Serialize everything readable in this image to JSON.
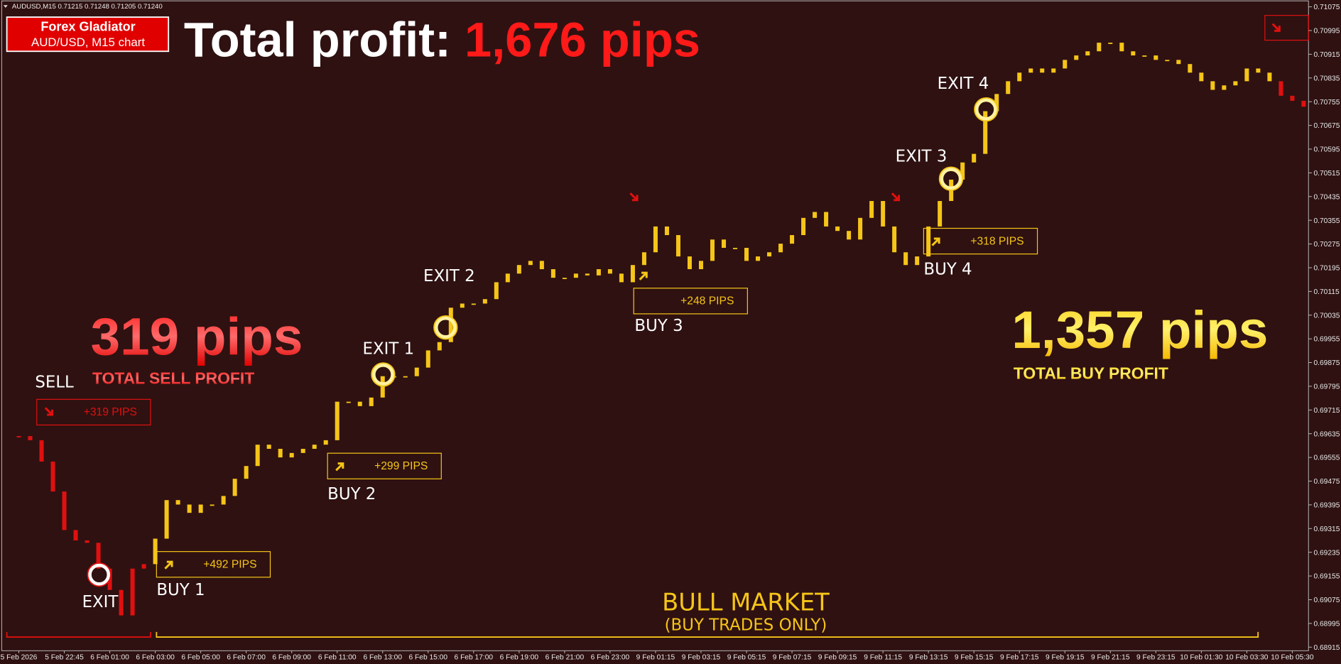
{
  "chart_data": {
    "type": "candlestick",
    "symbol_info": "AUDUSD,M15  0.71215 0.71248 0.71205 0.71240",
    "badge_title": "Forex Gladiator",
    "badge_subtitle": "AUD/USD, M15 chart",
    "title": "Total profit:",
    "title_value": "1,676 pips",
    "sell_total": "319 pips",
    "sell_total_label": "TOTAL SELL PROFIT",
    "buy_total": "1,357 pips",
    "buy_total_label": "TOTAL BUY PROFIT",
    "market_label": "BULL MARKET",
    "market_sublabel": "(BUY TRADES ONLY)",
    "trades": [
      {
        "entry": "SELL",
        "box": "+319 PIPS",
        "exit": "EXIT"
      },
      {
        "entry": "BUY 1",
        "box": "+492 PIPS",
        "exit": "EXIT 1"
      },
      {
        "entry": "BUY 2",
        "box": "+299 PIPS",
        "exit": "EXIT 2"
      },
      {
        "entry": "BUY 3",
        "box": "+248 PIPS",
        "exit": "EXIT 3"
      },
      {
        "entry": "BUY 4",
        "box": "+318 PIPS",
        "exit": "EXIT 4"
      }
    ],
    "categories": [
      "5 Feb 2026",
      null,
      null,
      null,
      "5 Feb 22:45",
      null,
      null,
      null,
      "6 Feb 01:00",
      null,
      null,
      null,
      "6 Feb 03:00",
      null,
      null,
      null,
      "6 Feb 05:00",
      null,
      null,
      null,
      "6 Feb 07:00",
      null,
      null,
      null,
      "6 Feb 09:00",
      null,
      null,
      null,
      "6 Feb 11:00",
      null,
      null,
      null,
      "6 Feb 13:00",
      null,
      null,
      null,
      "6 Feb 15:00",
      null,
      null,
      null,
      "6 Feb 17:00",
      null,
      null,
      null,
      "6 Feb 19:00",
      null,
      null,
      null,
      "6 Feb 21:00",
      null,
      null,
      null,
      "6 Feb 23:00",
      null,
      null,
      null,
      "9 Feb 01:15",
      null,
      null,
      null,
      "9 Feb 03:15",
      null,
      null,
      null,
      "9 Feb 05:15",
      null,
      null,
      null,
      "9 Feb 07:15",
      null,
      null,
      null,
      "9 Feb 09:15",
      null,
      null,
      null,
      "9 Feb 11:15",
      null,
      null,
      null,
      "9 Feb 13:15",
      null,
      null,
      null,
      "9 Feb 15:15",
      null,
      null,
      null,
      "9 Feb 17:15",
      null,
      null,
      null,
      "9 Feb 19:15",
      null,
      null,
      null,
      "9 Feb 21:15",
      null,
      null,
      null,
      "9 Feb 23:15",
      null,
      null,
      null,
      "10 Feb 01:30",
      null,
      null,
      null,
      "10 Feb 03:30",
      null,
      null,
      null,
      "10 Feb 05:30",
      null
    ],
    "closes": [
      0.69627,
      0.69613,
      0.69541,
      0.6944,
      0.6931,
      0.69275,
      0.69267,
      0.6918,
      0.69108,
      0.69022,
      0.6918,
      0.69195,
      0.69281,
      0.69411,
      0.69396,
      0.69368,
      0.69396,
      0.69396,
      0.69425,
      0.69483,
      0.69526,
      0.69598,
      0.69584,
      0.69555,
      0.6957,
      0.69584,
      0.69598,
      0.69613,
      0.69743,
      0.69743,
      0.69728,
      0.69757,
      0.69829,
      0.69829,
      0.69829,
      0.69858,
      0.69916,
      0.69944,
      0.7006,
      0.70074,
      0.70074,
      0.70089,
      0.70146,
      0.70175,
      0.70204,
      0.70218,
      0.7019,
      0.70161,
      0.70161,
      0.70175,
      0.70169,
      0.7019,
      0.70175,
      0.70146,
      0.70204,
      0.70247,
      0.70334,
      0.70305,
      0.70233,
      0.7019,
      0.70218,
      0.7029,
      0.70262,
      0.70262,
      0.70218,
      0.70233,
      0.70247,
      0.70276,
      0.70305,
      0.70363,
      0.70383,
      0.70334,
      0.70319,
      0.7029,
      0.70363,
      0.7042,
      0.70334,
      0.70247,
      0.70204,
      0.70233,
      0.70334,
      0.7042,
      0.70492,
      0.7055,
      0.70579,
      0.70723,
      0.70781,
      0.70824,
      0.70853,
      0.70867,
      0.70853,
      0.70867,
      0.70896,
      0.70911,
      0.70925,
      0.70954,
      0.70954,
      0.70925,
      0.70911,
      0.70911,
      0.70896,
      0.70896,
      0.70882,
      0.70853,
      0.70824,
      0.70795,
      0.7081,
      0.70824,
      0.70867,
      0.70853,
      0.70824,
      0.70775,
      0.70758,
      0.70738
    ],
    "color": "#f5c518",
    "red_color": "#e01010",
    "red_ranges": [
      [
        0,
        11
      ],
      [
        111,
        113
      ]
    ],
    "ylim": [
      0.689,
      0.71098
    ],
    "yticks": [
      0.71075,
      0.70995,
      0.70915,
      0.70835,
      0.70755,
      0.70675,
      0.70595,
      0.70515,
      0.70435,
      0.70355,
      0.70275,
      0.70195,
      0.70115,
      0.70035,
      0.69955,
      0.69875,
      0.69795,
      0.69715,
      0.69635,
      0.69555,
      0.69475,
      0.69395,
      0.69315,
      0.69235,
      0.69155,
      0.69075,
      0.68995,
      0.68915
    ]
  }
}
